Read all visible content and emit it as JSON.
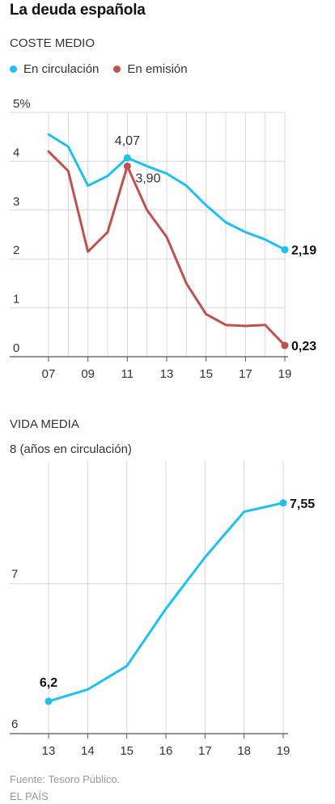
{
  "title": "La deuda española",
  "colors": {
    "circulacion": "#1ec0f0",
    "emision": "#c0504d",
    "grid": "#d8d8d8",
    "axis": "#555555",
    "text": "#333333",
    "source": "#999999"
  },
  "chart1": {
    "section": "COSTE MEDIO",
    "legend": [
      {
        "name": "En circulación",
        "color": "#1ec0f0"
      },
      {
        "name": "En emisión",
        "color": "#c0504d"
      }
    ]
  },
  "chart2": {
    "section": "VIDA MEDIA",
    "unit": "8 (años en circulación)"
  },
  "source": "Fuente: Tesoro Público.",
  "brand": "EL PAÍS",
  "chart_data": [
    {
      "type": "line",
      "title": "COSTE MEDIO",
      "x": [
        2007,
        2008,
        2009,
        2010,
        2011,
        2012,
        2013,
        2014,
        2015,
        2016,
        2017,
        2018,
        2019
      ],
      "x_tick_labels": [
        "07",
        "09",
        "11",
        "13",
        "15",
        "17",
        "19"
      ],
      "x_tick_values": [
        2007,
        2009,
        2011,
        2013,
        2015,
        2017,
        2019
      ],
      "y_tick_labels": [
        "0",
        "1",
        "2",
        "3",
        "4",
        "5%"
      ],
      "ylim": [
        0,
        5
      ],
      "grid": "vertical and horizontal",
      "legend": "top-left",
      "series": [
        {
          "name": "En circulación",
          "color": "#1ec0f0",
          "values": [
            4.55,
            4.3,
            3.5,
            3.7,
            4.07,
            3.9,
            3.75,
            3.5,
            3.1,
            2.75,
            2.55,
            2.4,
            2.19
          ]
        },
        {
          "name": "En emisión",
          "color": "#c0504d",
          "values": [
            4.2,
            3.8,
            2.15,
            2.55,
            3.9,
            3.0,
            2.45,
            1.5,
            0.87,
            0.65,
            0.63,
            0.65,
            0.23
          ]
        }
      ],
      "annotations": [
        {
          "series": 0,
          "x": 2011,
          "label": "4,07"
        },
        {
          "series": 1,
          "x": 2011,
          "label": "3,90"
        },
        {
          "series": 0,
          "x": 2019,
          "label": "2,19"
        },
        {
          "series": 1,
          "x": 2019,
          "label": "0,23"
        }
      ]
    },
    {
      "type": "line",
      "title": "VIDA MEDIA",
      "x": [
        2013,
        2014,
        2015,
        2016,
        2017,
        2018,
        2019
      ],
      "x_tick_labels": [
        "13",
        "14",
        "15",
        "16",
        "17",
        "18",
        "19"
      ],
      "y_tick_labels": [
        "6",
        "7"
      ],
      "ylabel": "8 (años en circulación)",
      "ylim": [
        6,
        8
      ],
      "grid": "vertical and horizontal",
      "series": [
        {
          "name": "",
          "color": "#1ec0f0",
          "values": [
            6.2,
            6.28,
            6.44,
            6.83,
            7.18,
            7.49,
            7.55
          ]
        }
      ],
      "annotations": [
        {
          "series": 0,
          "x": 2013,
          "label": "6,2"
        },
        {
          "series": 0,
          "x": 2019,
          "label": "7,55"
        }
      ]
    }
  ]
}
